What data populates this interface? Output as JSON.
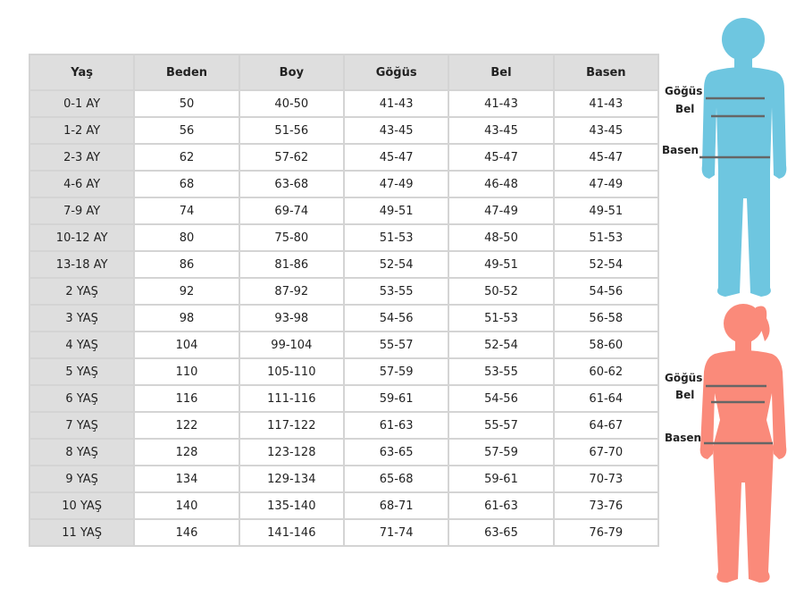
{
  "table": {
    "header": [
      "Yaş",
      "Beden",
      "Boy",
      "Göğüs",
      "Bel",
      "Basen"
    ],
    "rows": [
      [
        "0-1 AY",
        "50",
        "40-50",
        "41-43",
        "41-43",
        "41-43"
      ],
      [
        "1-2 AY",
        "56",
        "51-56",
        "43-45",
        "43-45",
        "43-45"
      ],
      [
        "2-3 AY",
        "62",
        "57-62",
        "45-47",
        "45-47",
        "45-47"
      ],
      [
        "4-6 AY",
        "68",
        "63-68",
        "47-49",
        "46-48",
        "47-49"
      ],
      [
        "7-9 AY",
        "74",
        "69-74",
        "49-51",
        "47-49",
        "49-51"
      ],
      [
        "10-12 AY",
        "80",
        "75-80",
        "51-53",
        "48-50",
        "51-53"
      ],
      [
        "13-18 AY",
        "86",
        "81-86",
        "52-54",
        "49-51",
        "52-54"
      ],
      [
        "2 YAŞ",
        "92",
        "87-92",
        "53-55",
        "50-52",
        "54-56"
      ],
      [
        "3 YAŞ",
        "98",
        "93-98",
        "54-56",
        "51-53",
        "56-58"
      ],
      [
        "4 YAŞ",
        "104",
        "99-104",
        "55-57",
        "52-54",
        "58-60"
      ],
      [
        "5 YAŞ",
        "110",
        "105-110",
        "57-59",
        "53-55",
        "60-62"
      ],
      [
        "6 YAŞ",
        "116",
        "111-116",
        "59-61",
        "54-56",
        "61-64"
      ],
      [
        "7 YAŞ",
        "122",
        "117-122",
        "61-63",
        "55-57",
        "64-67"
      ],
      [
        "8 YAŞ",
        "128",
        "123-128",
        "63-65",
        "57-59",
        "67-70"
      ],
      [
        "9 YAŞ",
        "134",
        "129-134",
        "65-68",
        "59-61",
        "70-73"
      ],
      [
        "10 YAŞ",
        "140",
        "135-140",
        "68-71",
        "61-63",
        "73-76"
      ],
      [
        "11 YAŞ",
        "146",
        "141-146",
        "71-74",
        "63-65",
        "76-79"
      ]
    ]
  },
  "figures": [
    {
      "labels": [
        "Göğüs",
        "Bel",
        "Basen"
      ]
    },
    {
      "labels": [
        "Göğüs",
        "Bel",
        "Basen"
      ]
    }
  ]
}
